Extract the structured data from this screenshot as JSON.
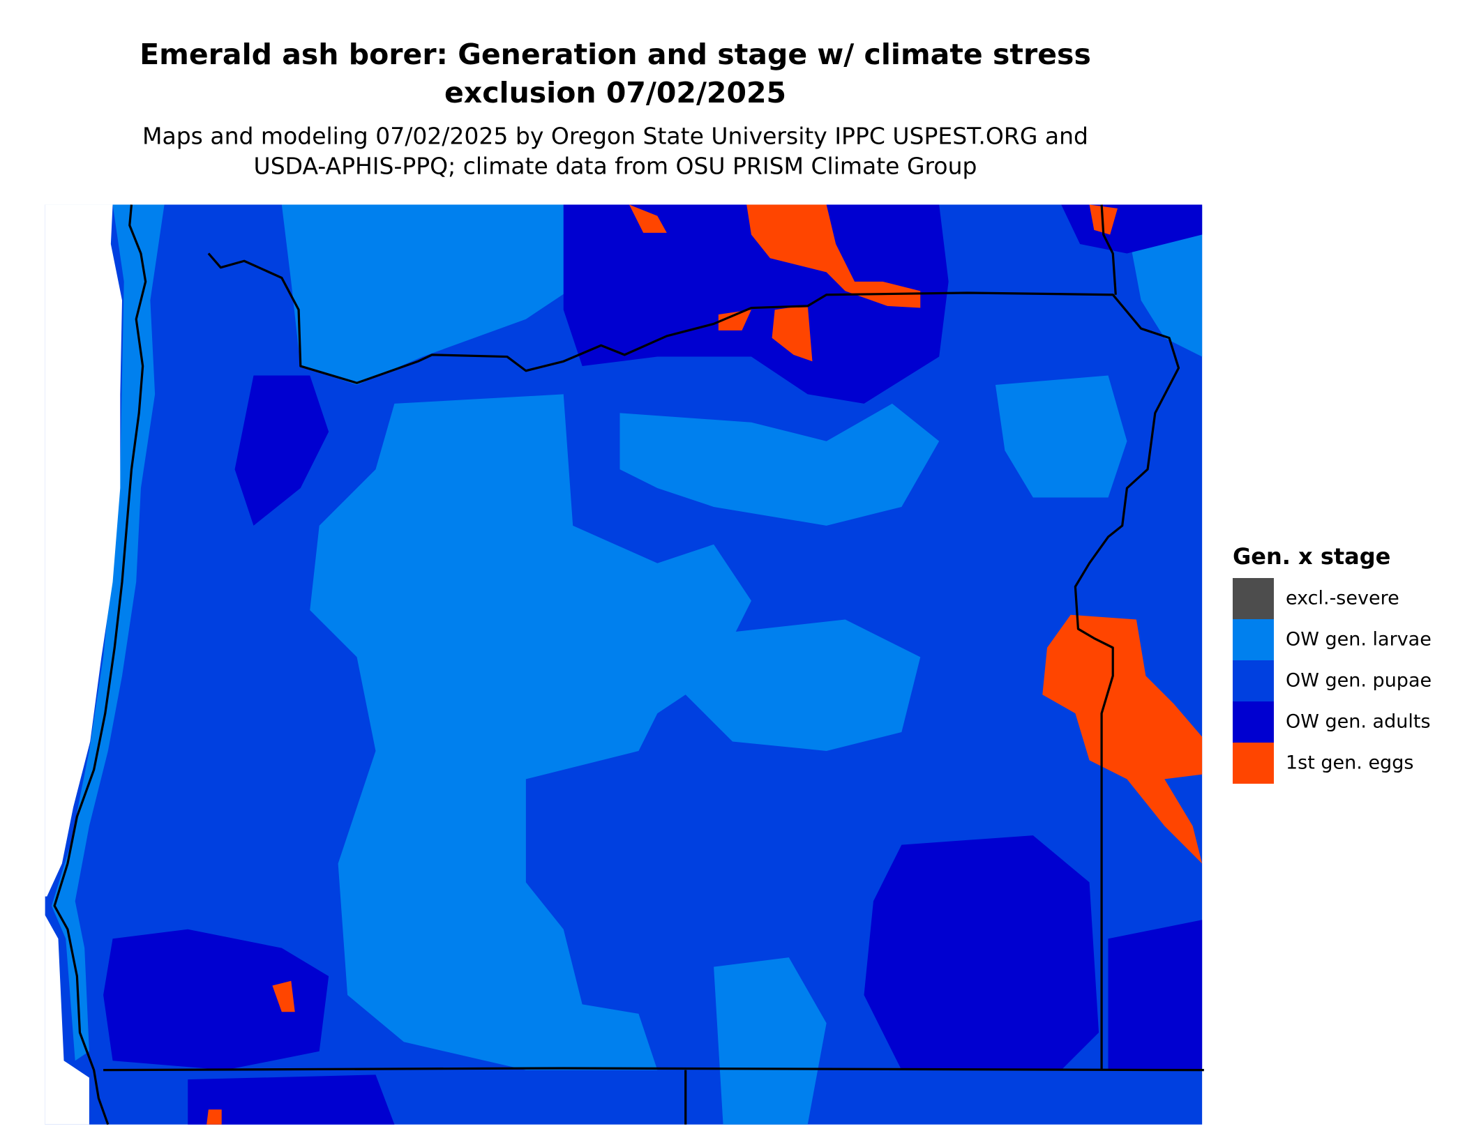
{
  "header": {
    "title_lines": [
      "Emerald ash borer: Generation and stage w/ climate stress",
      "exclusion 07/02/2025"
    ],
    "subtitle_lines": [
      "Maps and modeling 07/02/2025 by Oregon State University IPPC USPEST.ORG and",
      "USDA-APHIS-PPQ; climate data from OSU PRISM Climate Group"
    ]
  },
  "legend": {
    "title": "Gen. x stage",
    "items": [
      {
        "label": "excl.-severe",
        "color": "#4d4d4d"
      },
      {
        "label": "OW gen. larvae",
        "color": "#0080ee"
      },
      {
        "label": "OW gen. pupae",
        "color": "#0040e0"
      },
      {
        "label": "OW gen. adults",
        "color": "#0000d0"
      },
      {
        "label": "1st gen. eggs",
        "color": "#ff4500"
      }
    ]
  }
}
